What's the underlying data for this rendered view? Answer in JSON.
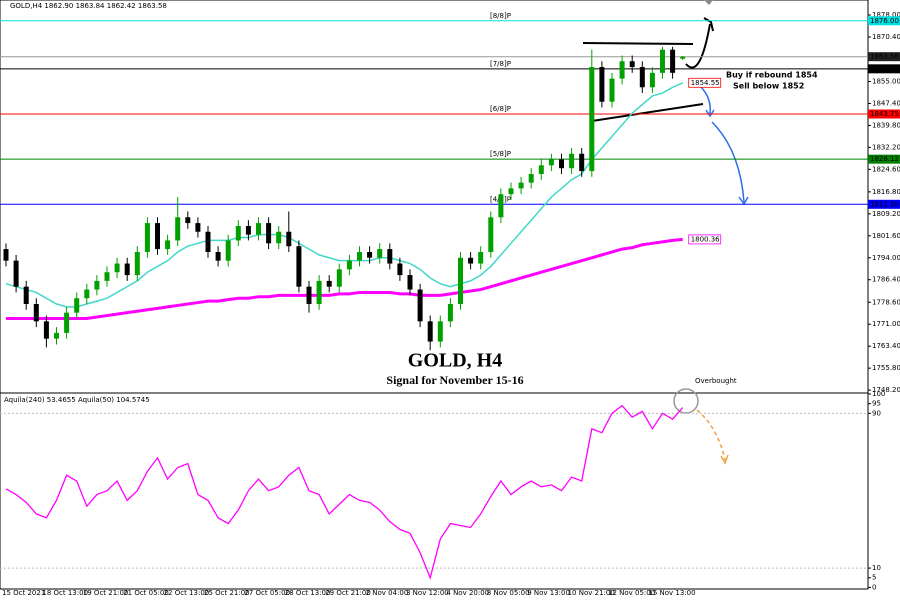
{
  "chart_data": [
    {
      "type": "candlestick",
      "header": "GOLD,H4  1862.90 1863.84 1862.42 1863.58",
      "title": "GOLD, H4",
      "subtitle": "Signal for November 15-16",
      "annotations": [
        {
          "text": "Buy if rebound 1854",
          "color": "#333333"
        },
        {
          "text": "Sell below 1852",
          "color": "#3366dd"
        }
      ],
      "categories": [
        "15 Oct 2021",
        null,
        null,
        null,
        "18 Oct 13:00",
        null,
        null,
        null,
        "19 Oct 21:00",
        null,
        null,
        null,
        "21 Oct 05:00",
        null,
        null,
        null,
        "22 Oct 13:00",
        null,
        null,
        null,
        "25 Oct 21:00",
        null,
        null,
        null,
        "27 Oct 05:00",
        null,
        null,
        null,
        "28 Oct 13:00",
        null,
        null,
        null,
        "29 Oct 21:00",
        null,
        null,
        null,
        "2 Nov 04:00",
        null,
        null,
        null,
        "3 Nov 12:00",
        null,
        null,
        null,
        "4 Nov 20:00",
        null,
        null,
        null,
        "8 Nov 05:00",
        null,
        null,
        null,
        "9 Nov 13:00",
        null,
        null,
        null,
        "10 Nov 21:00",
        null,
        null,
        null,
        "12 Nov 05:00",
        null,
        null,
        null,
        "15 Nov 13:00",
        null,
        null,
        null
      ],
      "open": [
        1797,
        1793,
        1784,
        1778,
        1772,
        1766,
        1768,
        1775,
        1780,
        1783,
        1786,
        1789,
        1792,
        1788,
        1796,
        1806,
        1797,
        1800,
        1808,
        1806,
        1803,
        1796,
        1793,
        1800,
        1805,
        1802,
        1806,
        1799,
        1803,
        1798,
        1784,
        1778,
        1786,
        1784,
        1790,
        1793,
        1796,
        1794,
        1797,
        1792,
        1788,
        1783,
        1772,
        1765,
        1772,
        1778,
        1794,
        1792,
        1796,
        1808,
        1816,
        1818,
        1820,
        1823,
        1826,
        1828,
        1825,
        1830,
        1824,
        1860,
        1848,
        1856,
        1862,
        1860,
        1853,
        1858,
        1866,
        1862.9
      ],
      "high": [
        1799,
        1795,
        1786,
        1780,
        1774,
        1770,
        1777,
        1782,
        1785,
        1788,
        1791,
        1794,
        1794,
        1798,
        1808,
        1808,
        1802,
        1815,
        1810,
        1808,
        1805,
        1798,
        1802,
        1807,
        1807,
        1808,
        1808,
        1805,
        1810,
        1800,
        1786,
        1788,
        1788,
        1792,
        1795,
        1798,
        1798,
        1799,
        1799,
        1794,
        1790,
        1785,
        1774,
        1774,
        1780,
        1796,
        1796,
        1798,
        1810,
        1818,
        1820,
        1822,
        1825,
        1828,
        1830,
        1830,
        1832,
        1832,
        1866,
        1862,
        1858,
        1864,
        1864,
        1862,
        1860,
        1867,
        1867,
        1863.84
      ],
      "low": [
        1791,
        1782,
        1776,
        1770,
        1763,
        1764,
        1766,
        1773,
        1778,
        1781,
        1784,
        1787,
        1786,
        1786,
        1794,
        1795,
        1795,
        1798,
        1804,
        1801,
        1794,
        1791,
        1791,
        1798,
        1800,
        1800,
        1797,
        1797,
        1796,
        1782,
        1775,
        1776,
        1782,
        1782,
        1788,
        1791,
        1792,
        1792,
        1790,
        1786,
        1781,
        1770,
        1762,
        1763,
        1770,
        1776,
        1790,
        1790,
        1794,
        1806,
        1814,
        1816,
        1818,
        1821,
        1824,
        1823,
        1823,
        1822,
        1822,
        1846,
        1846,
        1854,
        1858,
        1851,
        1851,
        1856,
        1856,
        1862.42
      ],
      "close": [
        1793,
        1784,
        1778,
        1772,
        1766,
        1768,
        1775,
        1780,
        1783,
        1786,
        1789,
        1792,
        1788,
        1796,
        1806,
        1797,
        1800,
        1808,
        1806,
        1803,
        1796,
        1793,
        1800,
        1805,
        1802,
        1806,
        1799,
        1803,
        1798,
        1784,
        1778,
        1786,
        1784,
        1790,
        1793,
        1796,
        1794,
        1797,
        1792,
        1788,
        1783,
        1772,
        1765,
        1772,
        1778,
        1794,
        1792,
        1796,
        1808,
        1816,
        1818,
        1820,
        1823,
        1826,
        1828,
        1825,
        1830,
        1824,
        1860,
        1848,
        1856,
        1862,
        1860,
        1853,
        1858,
        1866,
        1858,
        1863.58
      ],
      "close_label": "1863.58",
      "up_color": "#00a000",
      "down_color": "#000000",
      "moving_averages": [
        {
          "color": "#40d8c8",
          "tag_color": "#ff0000",
          "last_label": "1854.55",
          "values": [
            1785,
            1784,
            1783,
            1782,
            1780,
            1778,
            1777,
            1777,
            1778,
            1779,
            1780,
            1782,
            1784,
            1786,
            1789,
            1791,
            1793,
            1796,
            1798,
            1799,
            1800,
            1800,
            1800,
            1801,
            1801,
            1802,
            1802,
            1802,
            1801,
            1799,
            1797,
            1795,
            1794,
            1793,
            1793,
            1793,
            1793,
            1794,
            1794,
            1793,
            1792,
            1790,
            1787,
            1785,
            1784,
            1785,
            1786,
            1788,
            1791,
            1795,
            1799,
            1803,
            1807,
            1811,
            1815,
            1818,
            1821,
            1823,
            1828,
            1832,
            1836,
            1840,
            1844,
            1847,
            1850,
            1851,
            1853,
            1854.55
          ]
        },
        {
          "color": "#ff00ff",
          "tag_color": "#ff00ff",
          "last_label": "1800.36",
          "values": [
            1773,
            1773,
            1773,
            1773,
            1773,
            1773,
            1773,
            1773,
            1773,
            1773.5,
            1774,
            1774.5,
            1775,
            1775.5,
            1776,
            1776.5,
            1777,
            1777.5,
            1778,
            1778.5,
            1779,
            1779,
            1779.5,
            1780,
            1780,
            1780.5,
            1780.5,
            1781,
            1781,
            1781,
            1781,
            1781,
            1781,
            1781.5,
            1781.5,
            1782,
            1782,
            1782,
            1782,
            1781.5,
            1781.5,
            1781,
            1781,
            1781,
            1781.5,
            1782,
            1782.5,
            1783,
            1784,
            1785,
            1786,
            1787,
            1788,
            1789,
            1790,
            1791,
            1792,
            1793,
            1794,
            1795,
            1796,
            1797,
            1797.5,
            1798.5,
            1799,
            1799.5,
            1800,
            1800.36
          ]
        }
      ],
      "levels": [
        {
          "label": "[8/8]P",
          "value": 1876.0,
          "value_label": "1876.00",
          "color": "#00e0e0"
        },
        {
          "label": "[7/8]P",
          "value": 1859.38,
          "value_label": "1859.38",
          "color": "#000000"
        },
        {
          "label": "[6/8]P",
          "value": 1843.75,
          "value_label": "1843.75",
          "color": "#ff0000"
        },
        {
          "label": "[5/8]P",
          "value": 1828.12,
          "value_label": "1828.12",
          "color": "#008000"
        },
        {
          "label": "[4/8]P",
          "value": 1812.5,
          "value_label": "1812.50",
          "color": "#0000ff"
        }
      ],
      "ylim": [
        1747.2,
        1883.2
      ],
      "yticks": [
        {
          "value": 1878.0,
          "label": "1878.00"
        },
        {
          "value": 1870.4,
          "label": "1870.40"
        },
        {
          "value": 1862.7,
          "label": "1862.70"
        },
        {
          "value": 1855.0,
          "label": "1855.00"
        },
        {
          "value": 1847.4,
          "label": "1847.40"
        },
        {
          "value": 1839.8,
          "label": "1839.80"
        },
        {
          "value": 1832.2,
          "label": "1832.20"
        },
        {
          "value": 1824.6,
          "label": "1824.60"
        },
        {
          "value": 1816.8,
          "label": "1816.80"
        },
        {
          "value": 1809.2,
          "label": "1809.20"
        },
        {
          "value": 1801.6,
          "label": "1801.60"
        },
        {
          "value": 1794.0,
          "label": "1794.00"
        },
        {
          "value": 1786.4,
          "label": "1786.40"
        },
        {
          "value": 1778.6,
          "label": "1778.60"
        },
        {
          "value": 1771.0,
          "label": "1771.00"
        },
        {
          "value": 1763.4,
          "label": "1763.40"
        },
        {
          "value": 1755.8,
          "label": "1755.80"
        },
        {
          "value": 1748.2,
          "label": "1748.20"
        }
      ]
    },
    {
      "type": "line",
      "header": "Aquila(240) 53.4655  Aquila(50) 104.5745",
      "annotation": "Overbought",
      "color": "#ff00ff",
      "values": [
        51,
        48,
        44,
        38,
        36,
        45,
        58,
        55,
        42,
        48,
        50,
        55,
        45,
        50,
        60,
        67,
        56,
        62,
        64,
        48,
        45,
        36,
        33,
        40,
        50,
        56,
        50,
        52,
        58,
        62,
        50,
        48,
        38,
        43,
        48,
        45,
        44,
        40,
        34,
        30,
        28,
        18,
        5,
        25,
        33,
        32,
        31,
        38,
        47,
        55,
        48,
        52,
        55,
        52,
        53,
        50,
        57,
        55,
        82,
        80,
        90,
        94,
        88,
        91,
        82,
        90,
        87,
        93
      ],
      "ylim": [
        -0.3,
        100
      ],
      "yticks": [
        100,
        95,
        90,
        10,
        5,
        0
      ]
    }
  ]
}
